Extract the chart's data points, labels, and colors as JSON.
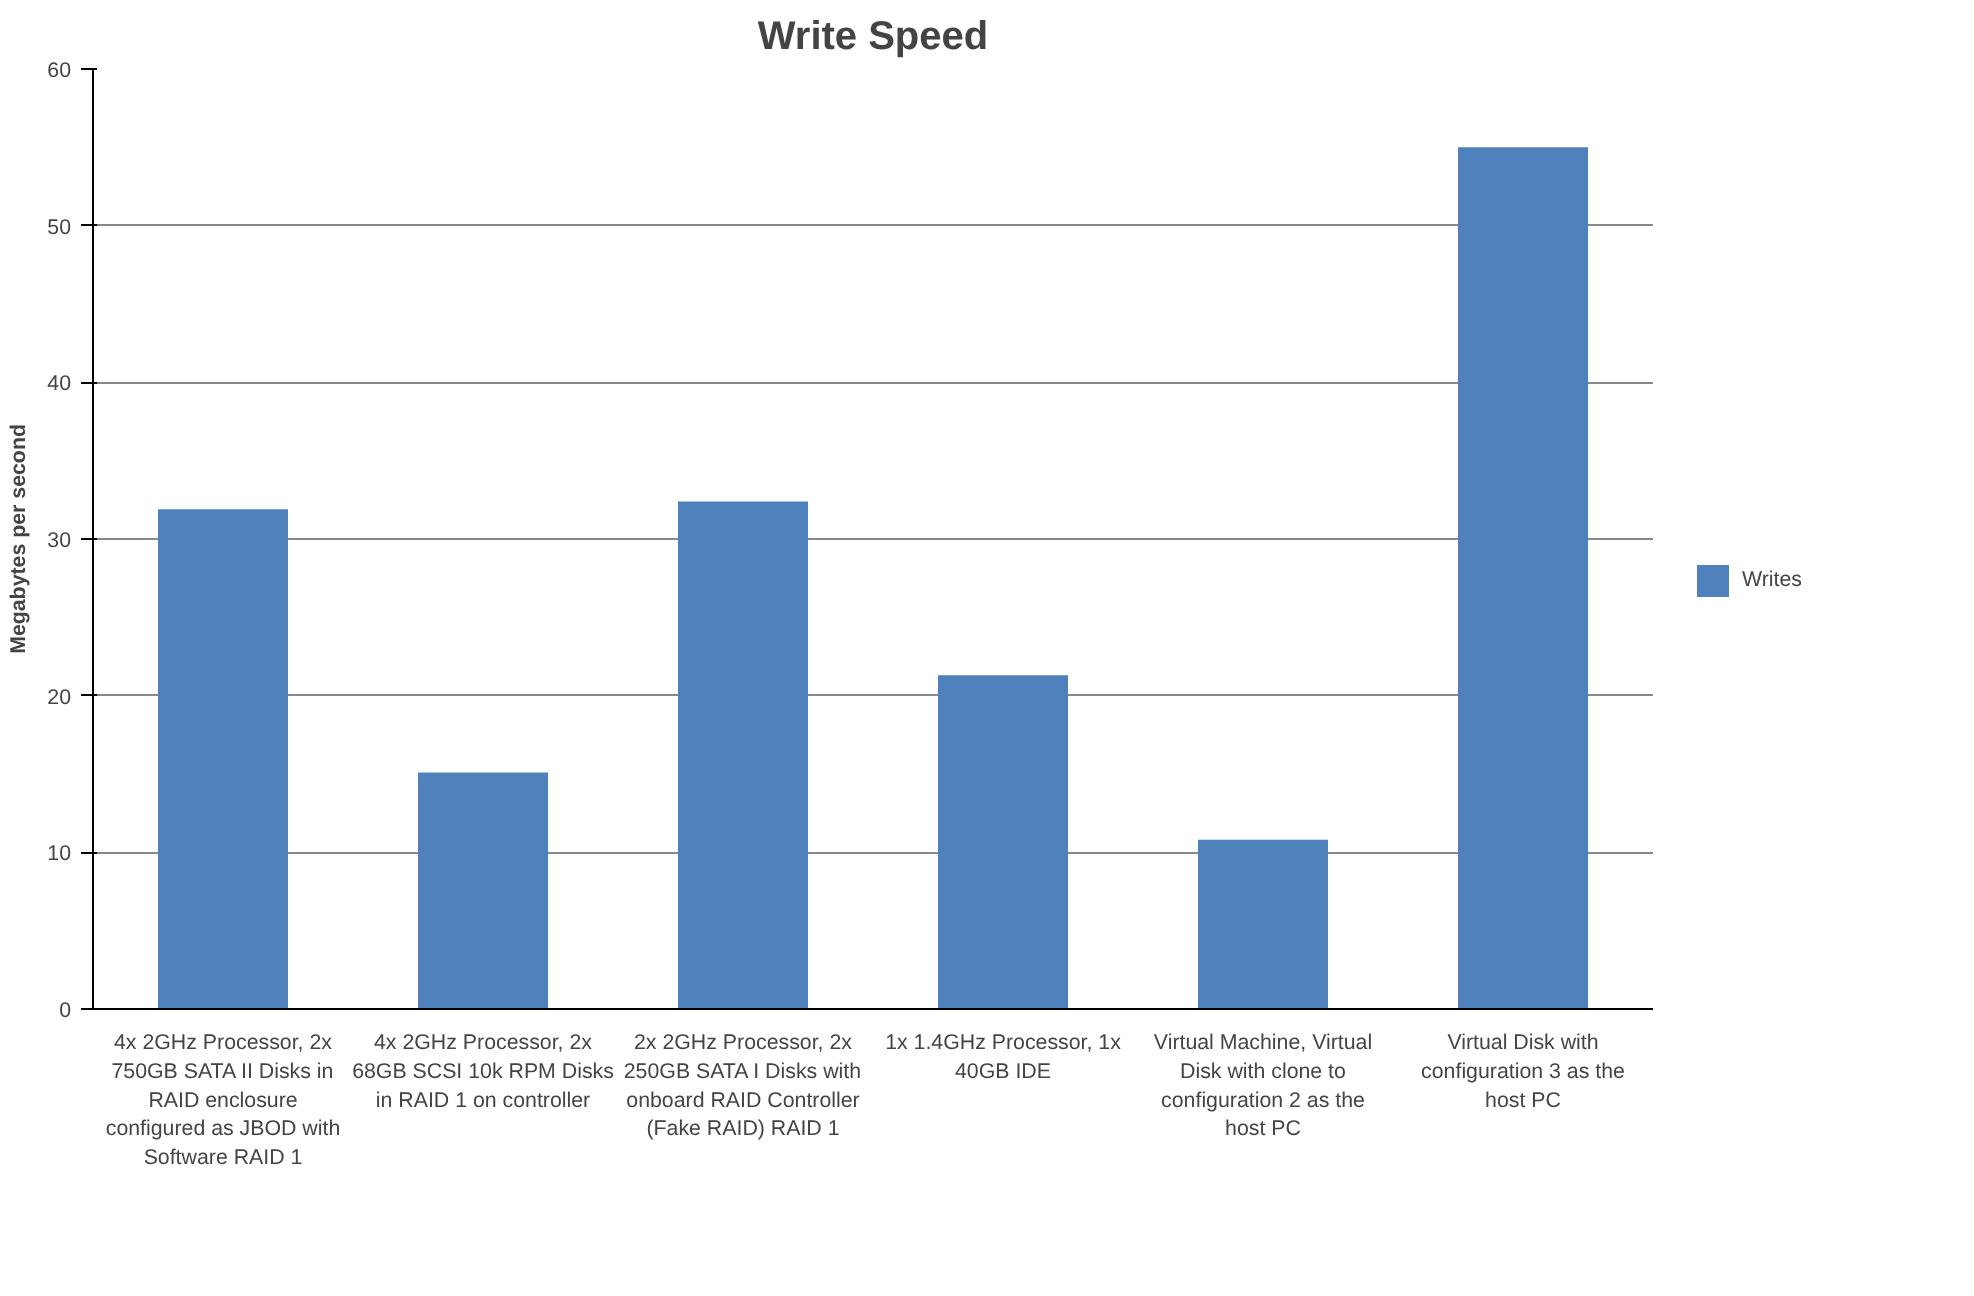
{
  "chart_data": {
    "type": "bar",
    "title": "Write Speed",
    "ylabel": "Megabytes per second",
    "categories": [
      "4x 2GHz Processor, 2x 750GB SATA II Disks in RAID enclosure configured as JBOD with Software RAID 1",
      "4x 2GHz Processor, 2x 68GB SCSI 10k RPM Disks in RAID 1 on controller",
      "2x 2GHz Processor, 2x 250GB SATA I Disks with onboard RAID Controller (Fake RAID) RAID 1",
      "1x 1.4GHz Processor, 1x 40GB IDE",
      "Virtual Machine, Virtual Disk with clone to configuration 2 as the host PC",
      "Virtual Disk with configuration 3 as the host PC"
    ],
    "series": [
      {
        "name": "Writes",
        "color": "#4f81bd",
        "values": [
          31.9,
          15.1,
          32.4,
          21.3,
          10.8,
          55.0
        ]
      }
    ],
    "ylim": [
      0,
      60
    ],
    "yticks": [
      0,
      10,
      20,
      30,
      40,
      50,
      60
    ],
    "grid": "y",
    "legend": "right"
  }
}
